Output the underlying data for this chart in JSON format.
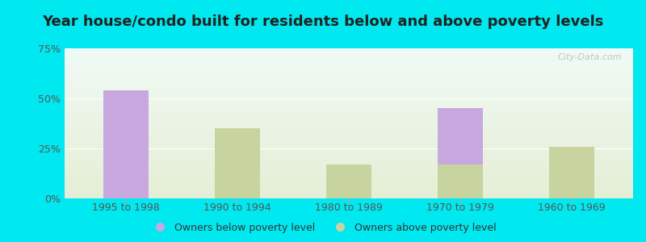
{
  "title": "Year house/condo built for residents below and above poverty levels",
  "categories": [
    "1995 to 1998",
    "1990 to 1994",
    "1980 to 1989",
    "1970 to 1979",
    "1960 to 1969"
  ],
  "below_poverty": [
    54,
    0,
    0,
    45,
    0
  ],
  "above_poverty": [
    0,
    35,
    17,
    17,
    26
  ],
  "below_color": "#c9a8e0",
  "above_color": "#c8d4a0",
  "bar_width": 0.4,
  "ylim": [
    0,
    75
  ],
  "yticks": [
    0,
    25,
    50,
    75
  ],
  "ytick_labels": [
    "0%",
    "25%",
    "50%",
    "75%"
  ],
  "legend_below": "Owners below poverty level",
  "legend_above": "Owners above poverty level",
  "outer_bg": "#00e8f0",
  "title_fontsize": 13,
  "tick_fontsize": 9,
  "legend_fontsize": 9,
  "watermark": "City-Data.com"
}
